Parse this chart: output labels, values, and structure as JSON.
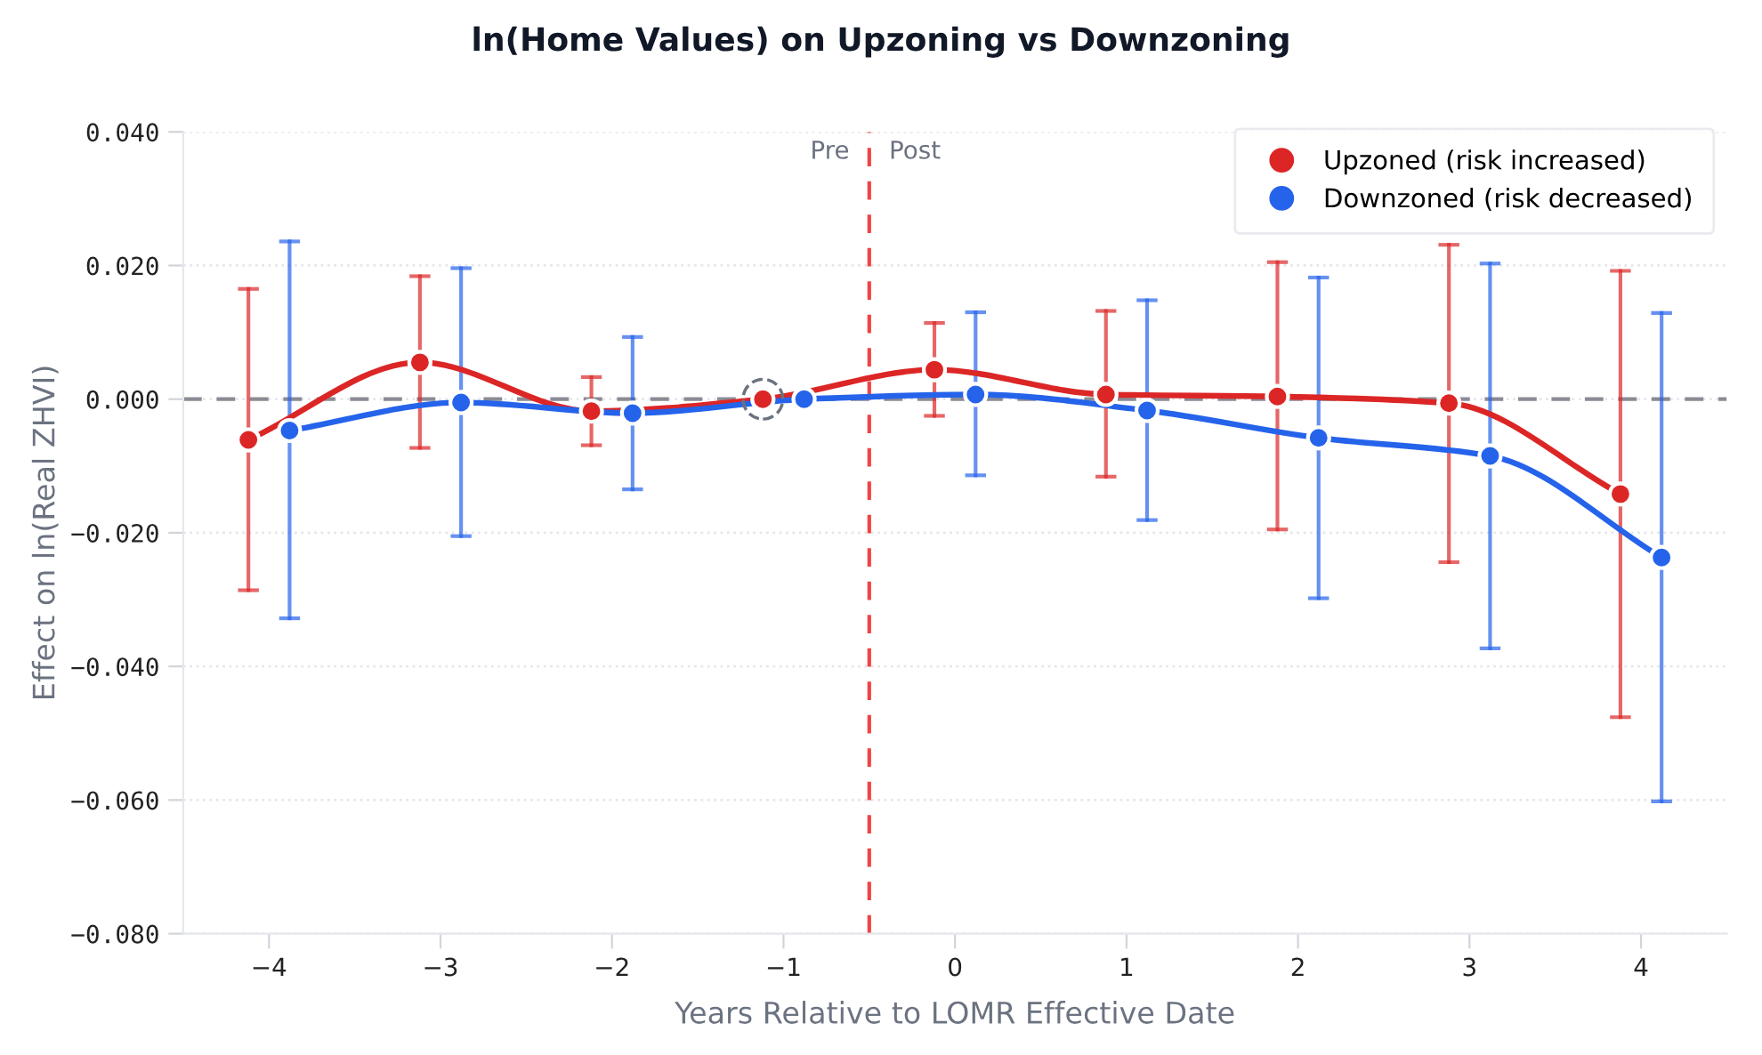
{
  "chart_data": {
    "type": "line",
    "title": "ln(Home Values) on Upzoning vs Downzoning",
    "xlabel": "Years Relative to LOMR Effective Date",
    "ylabel": "Effect on ln(Real ZHVI)",
    "series": [
      {
        "name": "Upzoned (risk increased)",
        "color": "#dc2626",
        "x": [
          -4.12,
          -3.12,
          -2.12,
          -1.12,
          -0.12,
          0.88,
          1.88,
          2.88,
          3.88
        ],
        "values": [
          -0.0061,
          0.0055,
          -0.0018,
          0.0,
          0.0044,
          0.0007,
          0.0004,
          -0.0006,
          -0.0142
        ],
        "errors": [
          [
            -0.0286,
            0.0165
          ],
          [
            -0.0073,
            0.0184
          ],
          [
            -0.0069,
            0.0033
          ],
          null,
          [
            -0.0025,
            0.0114
          ],
          [
            -0.0116,
            0.0132
          ],
          [
            -0.0195,
            0.0205
          ],
          [
            -0.0244,
            0.0231
          ],
          [
            -0.0476,
            0.0192
          ]
        ]
      },
      {
        "name": "Downzoned (risk decreased)",
        "color": "#2563eb",
        "x": [
          -3.88,
          -2.88,
          -1.88,
          -0.88,
          0.12,
          1.12,
          2.12,
          3.12,
          4.12
        ],
        "values": [
          -0.0047,
          -0.0005,
          -0.0021,
          0.0,
          0.0007,
          -0.0017,
          -0.0058,
          -0.0085,
          -0.0237
        ],
        "errors": [
          [
            -0.0328,
            0.0236
          ],
          [
            -0.0205,
            0.0196
          ],
          [
            -0.0135,
            0.0093
          ],
          null,
          [
            -0.0114,
            0.013
          ],
          [
            -0.0181,
            0.0148
          ],
          [
            -0.0298,
            0.0182
          ],
          [
            -0.0373,
            0.0203
          ],
          [
            -0.0602,
            0.0129
          ]
        ]
      }
    ],
    "xlim": [
      -4.5,
      4.5
    ],
    "xticks": [
      {
        "value": -4,
        "label": "−4"
      },
      {
        "value": -3,
        "label": "−3"
      },
      {
        "value": -2,
        "label": "−2"
      },
      {
        "value": -1,
        "label": "−1"
      },
      0,
      1,
      2,
      3,
      4
    ],
    "ylim": [
      -0.08,
      0.04
    ],
    "yticks": [
      {
        "value": -0.08,
        "label": "−0.080"
      },
      {
        "value": -0.06,
        "label": "−0.060"
      },
      {
        "value": -0.04,
        "label": "−0.040"
      },
      {
        "value": -0.02,
        "label": "−0.020"
      },
      {
        "value": 0,
        "label": "0.000"
      },
      {
        "value": 0.02,
        "label": "0.020"
      },
      {
        "value": 0.04,
        "label": "0.040"
      }
    ],
    "ref_lines": [
      {
        "axis": "x",
        "value": -0.5,
        "color": "#ef4444",
        "line_style": "dashed"
      },
      {
        "axis": "y",
        "value": 0,
        "color": "#8b8b95",
        "line_style": "dashed"
      }
    ],
    "annotations": [
      {
        "text": "Pre",
        "x": -0.5,
        "y": 0.037
      },
      {
        "text": "Post",
        "x": -0.5,
        "y": 0.037
      }
    ],
    "grid": "y",
    "legend": "top right",
    "marker": "circle"
  }
}
